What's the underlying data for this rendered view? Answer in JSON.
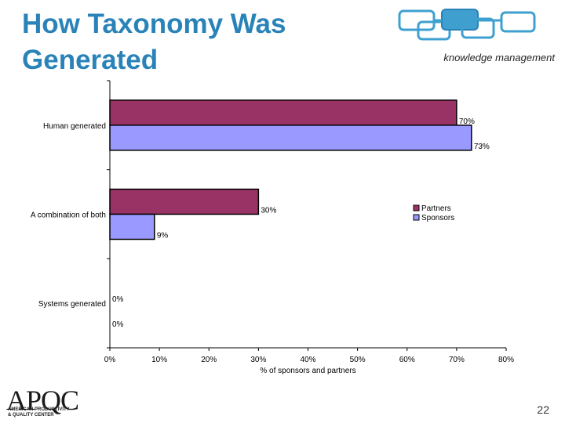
{
  "header": {
    "title": "How Taxonomy Was Generated",
    "brand_text": "knowledge management"
  },
  "footer": {
    "logo_text": "APQC",
    "logo_sub_line1": "AMERICAN PRODUCTIVITY",
    "logo_sub_line2": "& QUALITY CENTER",
    "page_number": "22"
  },
  "colors": {
    "title": "#2a83b8",
    "partners": "#993366",
    "sponsors": "#9999ff"
  },
  "chart_data": {
    "type": "bar",
    "orientation": "horizontal",
    "categories": [
      "Human generated",
      "A combination of both",
      "Systems generated"
    ],
    "series": [
      {
        "name": "Partners",
        "values": [
          70,
          30,
          0
        ],
        "labels": [
          "70%",
          "30%",
          "0%"
        ],
        "color": "#993366"
      },
      {
        "name": "Sponsors",
        "values": [
          73,
          9,
          0
        ],
        "labels": [
          "73%",
          "9%",
          "0%"
        ],
        "color": "#9999ff"
      }
    ],
    "xlabel": "% of sponsors and partners",
    "xlim": [
      0,
      80
    ],
    "xticks": [
      "0%",
      "10%",
      "20%",
      "30%",
      "40%",
      "50%",
      "60%",
      "70%",
      "80%"
    ],
    "legend_position": "right",
    "grid": false
  }
}
